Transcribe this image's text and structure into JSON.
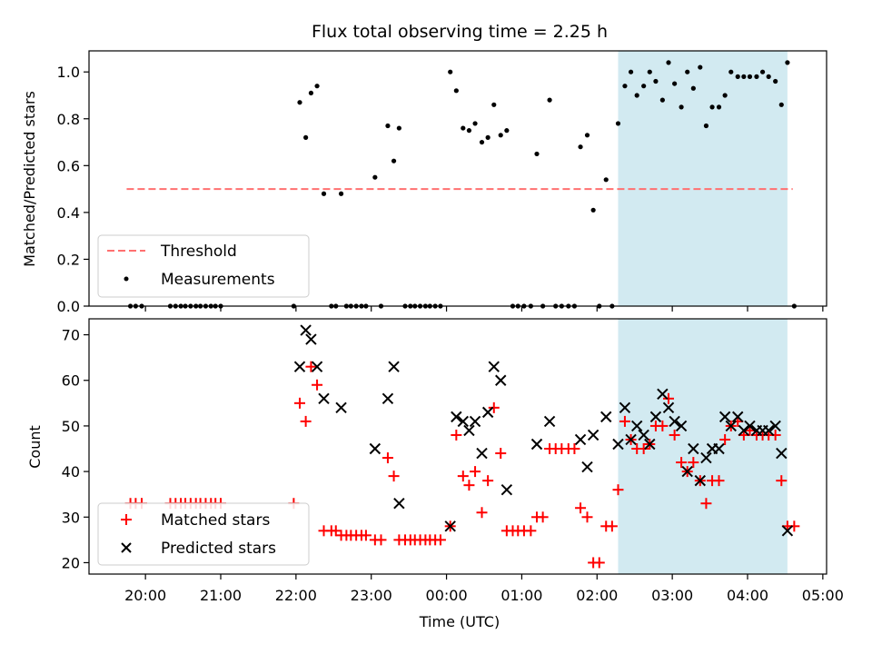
{
  "chart_data": [
    {
      "type": "scatter",
      "title": "Flux total observing time = 2.25 h",
      "xlabel": "",
      "ylabel": "Matched/Predicted stars",
      "x_unit": "hours since 00:00 UTC",
      "xlim": [
        -4.75,
        5.05
      ],
      "ylim": [
        0,
        1.09
      ],
      "yticks": [
        "0.0",
        "0.2",
        "0.4",
        "0.6",
        "0.8",
        "1.0"
      ],
      "shaded_region": {
        "x": [
          2.28,
          4.53
        ],
        "color": "#add8e6"
      },
      "legend_position": "lower-left",
      "threshold": {
        "name": "Threshold",
        "y": 0.5,
        "x": [
          -4.25,
          4.6
        ],
        "color": "#ff7070"
      },
      "series": [
        {
          "name": "Measurements",
          "color": "#000000",
          "points": [
            [
              -4.2,
              0
            ],
            [
              -4.13,
              0
            ],
            [
              -4.05,
              0
            ],
            [
              -3.67,
              0
            ],
            [
              -3.6,
              0
            ],
            [
              -3.53,
              0
            ],
            [
              -3.47,
              0
            ],
            [
              -3.4,
              0
            ],
            [
              -3.33,
              0
            ],
            [
              -3.27,
              0
            ],
            [
              -3.2,
              0
            ],
            [
              -3.13,
              0
            ],
            [
              -3.07,
              0
            ],
            [
              -3.0,
              0
            ],
            [
              -2.03,
              0
            ],
            [
              -1.95,
              0.87
            ],
            [
              -1.87,
              0.72
            ],
            [
              -1.8,
              0.91
            ],
            [
              -1.72,
              0.94
            ],
            [
              -1.63,
              0.48
            ],
            [
              -1.53,
              0
            ],
            [
              -1.47,
              0
            ],
            [
              -1.4,
              0.48
            ],
            [
              -1.33,
              0
            ],
            [
              -1.27,
              0
            ],
            [
              -1.2,
              0
            ],
            [
              -1.13,
              0
            ],
            [
              -1.07,
              0
            ],
            [
              -0.95,
              0.55
            ],
            [
              -0.87,
              0
            ],
            [
              -0.78,
              0.77
            ],
            [
              -0.7,
              0.62
            ],
            [
              -0.63,
              0.76
            ],
            [
              -0.55,
              0
            ],
            [
              -0.48,
              0
            ],
            [
              -0.42,
              0
            ],
            [
              -0.35,
              0
            ],
            [
              -0.28,
              0
            ],
            [
              -0.22,
              0
            ],
            [
              -0.15,
              0
            ],
            [
              -0.08,
              0
            ],
            [
              0.05,
              1.0
            ],
            [
              0.13,
              0.92
            ],
            [
              0.22,
              0.76
            ],
            [
              0.3,
              0.75
            ],
            [
              0.38,
              0.78
            ],
            [
              0.47,
              0.7
            ],
            [
              0.55,
              0.72
            ],
            [
              0.63,
              0.86
            ],
            [
              0.72,
              0.73
            ],
            [
              0.8,
              0.75
            ],
            [
              0.88,
              0
            ],
            [
              0.95,
              0
            ],
            [
              1.03,
              0
            ],
            [
              1.12,
              0
            ],
            [
              1.2,
              0.65
            ],
            [
              1.28,
              0
            ],
            [
              1.37,
              0.88
            ],
            [
              1.45,
              0
            ],
            [
              1.53,
              0
            ],
            [
              1.62,
              0
            ],
            [
              1.7,
              0
            ],
            [
              1.78,
              0.68
            ],
            [
              1.87,
              0.73
            ],
            [
              1.95,
              0.41
            ],
            [
              2.03,
              0
            ],
            [
              2.12,
              0.54
            ],
            [
              2.2,
              0
            ],
            [
              2.28,
              0.78
            ],
            [
              2.37,
              0.94
            ],
            [
              2.45,
              1.0
            ],
            [
              2.53,
              0.9
            ],
            [
              2.62,
              0.94
            ],
            [
              2.7,
              1.0
            ],
            [
              2.78,
              0.96
            ],
            [
              2.87,
              0.88
            ],
            [
              2.95,
              1.04
            ],
            [
              3.03,
              0.95
            ],
            [
              3.12,
              0.85
            ],
            [
              3.2,
              1.0
            ],
            [
              3.28,
              0.93
            ],
            [
              3.37,
              1.02
            ],
            [
              3.45,
              0.77
            ],
            [
              3.53,
              0.85
            ],
            [
              3.62,
              0.85
            ],
            [
              3.7,
              0.9
            ],
            [
              3.78,
              1.0
            ],
            [
              3.87,
              0.98
            ],
            [
              3.95,
              0.98
            ],
            [
              4.03,
              0.98
            ],
            [
              4.12,
              0.98
            ],
            [
              4.2,
              1.0
            ],
            [
              4.28,
              0.98
            ],
            [
              4.37,
              0.96
            ],
            [
              4.45,
              0.86
            ],
            [
              4.53,
              1.04
            ],
            [
              4.62,
              0
            ]
          ]
        }
      ]
    },
    {
      "type": "scatter",
      "title": "",
      "xlabel": "Time (UTC)",
      "ylabel": "Count",
      "x_unit": "hours since 00:00 UTC",
      "xlim": [
        -4.75,
        5.05
      ],
      "ylim": [
        17.5,
        73.5
      ],
      "yticks": [
        "20",
        "30",
        "40",
        "50",
        "60",
        "70"
      ],
      "xticks": [
        {
          "value": -4,
          "label": "20:00"
        },
        {
          "value": -3,
          "label": "21:00"
        },
        {
          "value": -2,
          "label": "22:00"
        },
        {
          "value": -1,
          "label": "23:00"
        },
        {
          "value": 0,
          "label": "00:00"
        },
        {
          "value": 1,
          "label": "01:00"
        },
        {
          "value": 2,
          "label": "02:00"
        },
        {
          "value": 3,
          "label": "03:00"
        },
        {
          "value": 4,
          "label": "04:00"
        },
        {
          "value": 5,
          "label": "05:00"
        }
      ],
      "shaded_region": {
        "x": [
          2.28,
          4.53
        ],
        "color": "#add8e6"
      },
      "legend_position": "lower-left",
      "series": [
        {
          "name": "Matched stars",
          "marker": "plus",
          "color": "#ff0000",
          "points": [
            [
              -4.2,
              33
            ],
            [
              -4.13,
              33
            ],
            [
              -4.05,
              33
            ],
            [
              -3.67,
              33
            ],
            [
              -3.6,
              33
            ],
            [
              -3.53,
              33
            ],
            [
              -3.47,
              33
            ],
            [
              -3.4,
              33
            ],
            [
              -3.33,
              33
            ],
            [
              -3.27,
              33
            ],
            [
              -3.2,
              33
            ],
            [
              -3.13,
              33
            ],
            [
              -3.07,
              33
            ],
            [
              -3.0,
              33
            ],
            [
              -2.03,
              33
            ],
            [
              -1.95,
              55
            ],
            [
              -1.87,
              51
            ],
            [
              -1.8,
              63
            ],
            [
              -1.72,
              59
            ],
            [
              -1.63,
              27
            ],
            [
              -1.53,
              27
            ],
            [
              -1.47,
              27
            ],
            [
              -1.4,
              26
            ],
            [
              -1.33,
              26
            ],
            [
              -1.27,
              26
            ],
            [
              -1.2,
              26
            ],
            [
              -1.13,
              26
            ],
            [
              -1.07,
              26
            ],
            [
              -0.95,
              25
            ],
            [
              -0.87,
              25
            ],
            [
              -0.78,
              43
            ],
            [
              -0.7,
              39
            ],
            [
              -0.63,
              25
            ],
            [
              -0.55,
              25
            ],
            [
              -0.48,
              25
            ],
            [
              -0.42,
              25
            ],
            [
              -0.35,
              25
            ],
            [
              -0.28,
              25
            ],
            [
              -0.22,
              25
            ],
            [
              -0.15,
              25
            ],
            [
              -0.08,
              25
            ],
            [
              0.05,
              28
            ],
            [
              0.13,
              48
            ],
            [
              0.22,
              39
            ],
            [
              0.3,
              37
            ],
            [
              0.38,
              40
            ],
            [
              0.47,
              31
            ],
            [
              0.55,
              38
            ],
            [
              0.63,
              54
            ],
            [
              0.72,
              44
            ],
            [
              0.8,
              27
            ],
            [
              0.88,
              27
            ],
            [
              0.95,
              27
            ],
            [
              1.03,
              27
            ],
            [
              1.12,
              27
            ],
            [
              1.2,
              30
            ],
            [
              1.28,
              30
            ],
            [
              1.37,
              45
            ],
            [
              1.45,
              45
            ],
            [
              1.53,
              45
            ],
            [
              1.62,
              45
            ],
            [
              1.7,
              45
            ],
            [
              1.78,
              32
            ],
            [
              1.87,
              30
            ],
            [
              1.95,
              20
            ],
            [
              2.03,
              20
            ],
            [
              2.12,
              28
            ],
            [
              2.2,
              28
            ],
            [
              2.28,
              36
            ],
            [
              2.37,
              51
            ],
            [
              2.45,
              47
            ],
            [
              2.53,
              45
            ],
            [
              2.62,
              45
            ],
            [
              2.7,
              46
            ],
            [
              2.78,
              50
            ],
            [
              2.87,
              50
            ],
            [
              2.95,
              56
            ],
            [
              3.03,
              48
            ],
            [
              3.12,
              42
            ],
            [
              3.2,
              40
            ],
            [
              3.28,
              42
            ],
            [
              3.37,
              38
            ],
            [
              3.45,
              33
            ],
            [
              3.53,
              38
            ],
            [
              3.62,
              38
            ],
            [
              3.7,
              47
            ],
            [
              3.78,
              50
            ],
            [
              3.87,
              51
            ],
            [
              3.95,
              48
            ],
            [
              4.03,
              49
            ],
            [
              4.12,
              48
            ],
            [
              4.2,
              48
            ],
            [
              4.28,
              48
            ],
            [
              4.37,
              48
            ],
            [
              4.45,
              38
            ],
            [
              4.53,
              28
            ],
            [
              4.62,
              28
            ]
          ]
        },
        {
          "name": "Predicted stars",
          "marker": "x",
          "color": "#000000",
          "points": [
            [
              -1.95,
              63
            ],
            [
              -1.87,
              71
            ],
            [
              -1.8,
              69
            ],
            [
              -1.72,
              63
            ],
            [
              -1.63,
              56
            ],
            [
              -1.4,
              54
            ],
            [
              -0.95,
              45
            ],
            [
              -0.78,
              56
            ],
            [
              -0.7,
              63
            ],
            [
              -0.63,
              33
            ],
            [
              0.05,
              28
            ],
            [
              0.13,
              52
            ],
            [
              0.22,
              51
            ],
            [
              0.3,
              49
            ],
            [
              0.38,
              51
            ],
            [
              0.47,
              44
            ],
            [
              0.55,
              53
            ],
            [
              0.63,
              63
            ],
            [
              0.72,
              60
            ],
            [
              0.8,
              36
            ],
            [
              1.2,
              46
            ],
            [
              1.37,
              51
            ],
            [
              1.78,
              47
            ],
            [
              1.87,
              41
            ],
            [
              1.95,
              48
            ],
            [
              2.12,
              52
            ],
            [
              2.28,
              46
            ],
            [
              2.37,
              54
            ],
            [
              2.45,
              47
            ],
            [
              2.53,
              50
            ],
            [
              2.62,
              48
            ],
            [
              2.7,
              46
            ],
            [
              2.78,
              52
            ],
            [
              2.87,
              57
            ],
            [
              2.95,
              54
            ],
            [
              3.03,
              51
            ],
            [
              3.12,
              50
            ],
            [
              3.2,
              40
            ],
            [
              3.28,
              45
            ],
            [
              3.37,
              38
            ],
            [
              3.45,
              43
            ],
            [
              3.53,
              45
            ],
            [
              3.62,
              45
            ],
            [
              3.7,
              52
            ],
            [
              3.78,
              50
            ],
            [
              3.87,
              52
            ],
            [
              3.95,
              49
            ],
            [
              4.03,
              50
            ],
            [
              4.12,
              49
            ],
            [
              4.2,
              49
            ],
            [
              4.28,
              49
            ],
            [
              4.37,
              50
            ],
            [
              4.45,
              44
            ],
            [
              4.53,
              27
            ]
          ]
        }
      ]
    }
  ]
}
